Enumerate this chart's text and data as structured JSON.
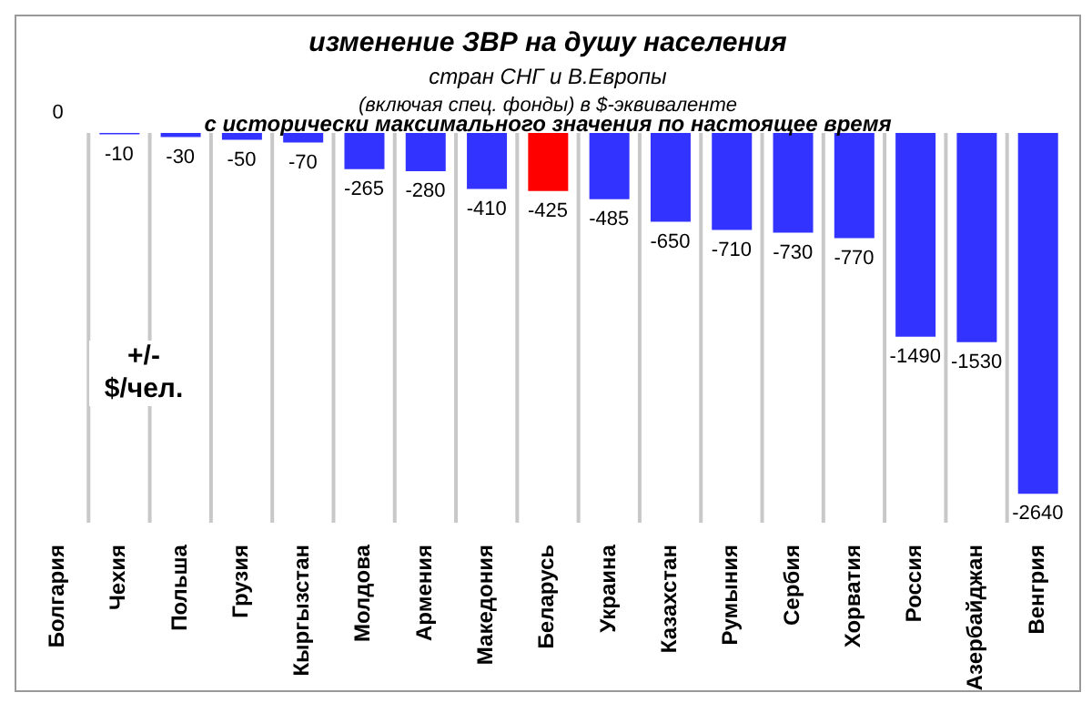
{
  "chart_data": {
    "type": "bar",
    "title": "изменение ЗВР на душу населения",
    "subtitle": "стран СНГ и В.Европы",
    "annotations": [
      "(включая спец. фонды) в $-эквиваленте",
      "с исторически максимального значения по настоящее время"
    ],
    "ylabel": "+/- $/чел.",
    "categories": [
      "Болгария",
      "Чехия",
      "Польша",
      "Грузия",
      "Кыргызстан",
      "Молдова",
      "Армения",
      "Македония",
      "Беларусь",
      "Украина",
      "Казахстан",
      "Румыния",
      "Сербия",
      "Хорватия",
      "Россия",
      "Азербайджан",
      "Венгрия"
    ],
    "values": [
      0,
      -10,
      -30,
      -50,
      -70,
      -265,
      -280,
      -410,
      -425,
      -485,
      -650,
      -710,
      -730,
      -770,
      -1490,
      -1530,
      -2640
    ],
    "colors": [
      "#3333ff",
      "#3333ff",
      "#3333ff",
      "#3333ff",
      "#3333ff",
      "#3333ff",
      "#3333ff",
      "#3333ff",
      "#ff0000",
      "#3333ff",
      "#3333ff",
      "#3333ff",
      "#3333ff",
      "#3333ff",
      "#3333ff",
      "#3333ff",
      "#3333ff"
    ],
    "data_labels": true,
    "grid": "x",
    "legend": false
  }
}
